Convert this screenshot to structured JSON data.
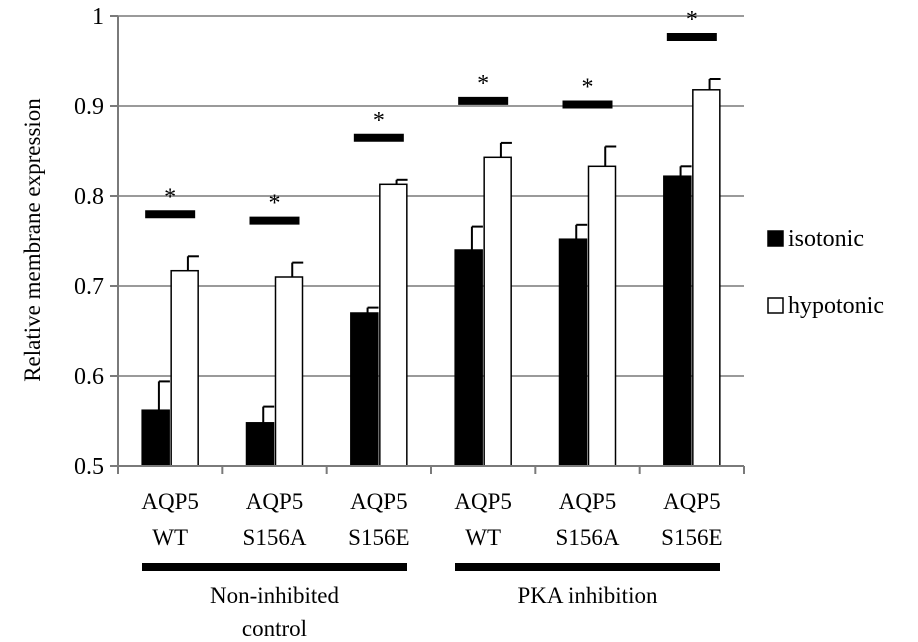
{
  "chart_data": {
    "type": "bar",
    "ylabel": "Relative membrane expression",
    "ylim": [
      0.5,
      1.0
    ],
    "yticks": [
      "0.5",
      "0.6",
      "0.7",
      "0.8",
      "0.9",
      "1"
    ],
    "grid": "horizontal",
    "legend_position": "right",
    "categories": [
      {
        "line1": "AQP5",
        "line2": "WT"
      },
      {
        "line1": "AQP5",
        "line2": "S156A"
      },
      {
        "line1": "AQP5",
        "line2": "S156E"
      },
      {
        "line1": "AQP5",
        "line2": "WT"
      },
      {
        "line1": "AQP5",
        "line2": "S156A"
      },
      {
        "line1": "AQP5",
        "line2": "S156E"
      }
    ],
    "groups": [
      {
        "line1": "Non-inhibited",
        "line2": "control",
        "from": 0,
        "to": 2
      },
      {
        "line1": "PKA inhibition",
        "line2": "",
        "from": 3,
        "to": 5
      }
    ],
    "series": [
      {
        "name": "isotonic",
        "color": "#000000",
        "values": [
          0.562,
          0.548,
          0.67,
          0.74,
          0.752,
          0.822
        ],
        "errors": [
          0.032,
          0.018,
          0.006,
          0.026,
          0.016,
          0.011
        ]
      },
      {
        "name": "hypotonic",
        "color": "#ffffff",
        "values": [
          0.717,
          0.71,
          0.813,
          0.843,
          0.833,
          0.918
        ],
        "errors": [
          0.016,
          0.016,
          0.005,
          0.016,
          0.022,
          0.012
        ]
      }
    ],
    "significance": {
      "marker": "*",
      "categories": [
        0,
        1,
        2,
        3,
        4,
        5
      ]
    }
  }
}
